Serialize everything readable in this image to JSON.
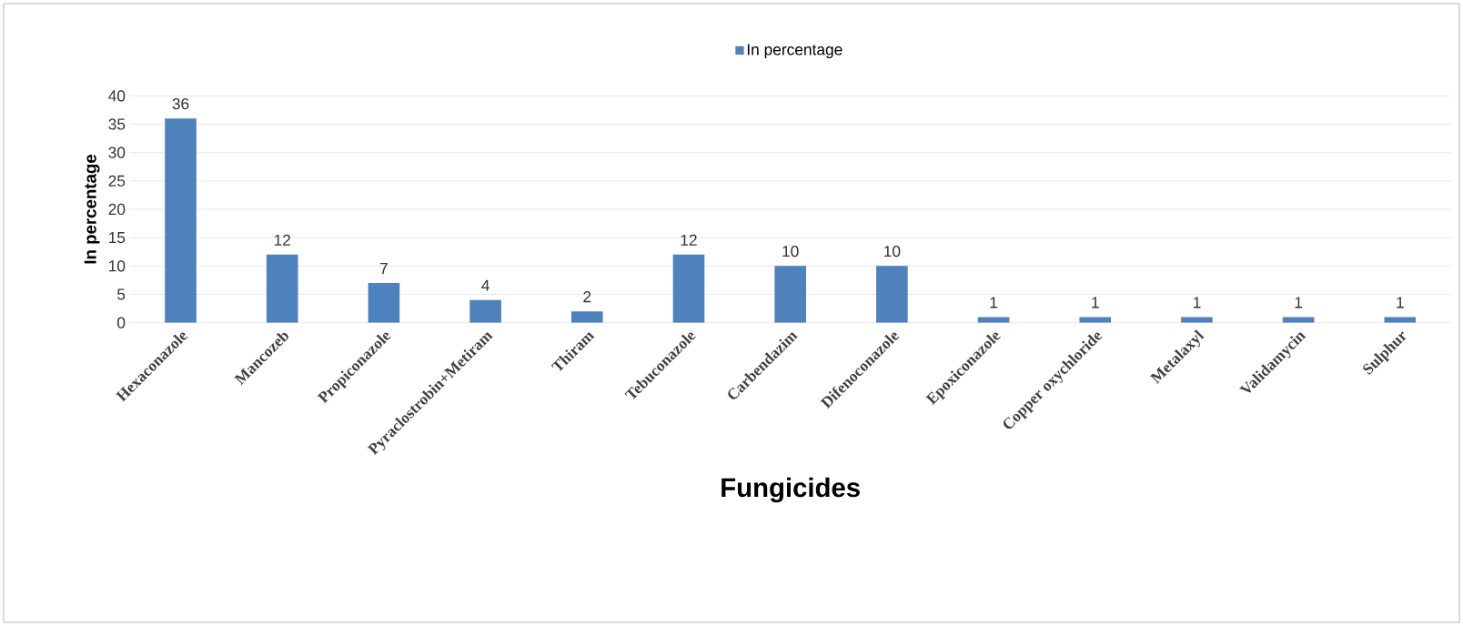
{
  "chart_data": {
    "type": "bar",
    "xlabel": "Fungicides",
    "ylabel": "In percentage",
    "categories": [
      "Hexaconazole",
      "Mancozeb",
      "Propiconazole",
      "Pyraclostrobin+Metiram",
      "Thiram",
      "Tebuconazole",
      "Carbendazim",
      "Difenoconazole",
      "Epoxiconazole",
      "Copper oxychloride",
      "Metalaxyl",
      "Validamycin",
      "Sulphur"
    ],
    "series": [
      {
        "name": "In percentage",
        "color": "#4f81bd",
        "values": [
          36,
          12,
          7,
          4,
          2,
          12,
          10,
          10,
          1,
          1,
          1,
          1,
          1
        ]
      }
    ],
    "ylim": [
      0,
      40
    ],
    "yticks": [
      0,
      5,
      10,
      15,
      20,
      25,
      30,
      35,
      40
    ],
    "grid": "y",
    "legend": "top",
    "data_labels": true
  }
}
